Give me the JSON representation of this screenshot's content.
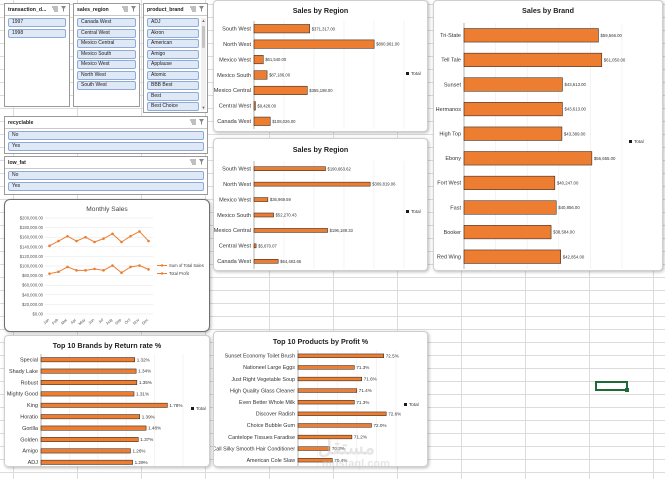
{
  "slicers": {
    "transaction_date": {
      "title": "transaction_d...",
      "items": [
        "1997",
        "1998"
      ]
    },
    "sales_region": {
      "title": "sales_region",
      "items": [
        "Canada West",
        "Central West",
        "Mexico Central",
        "Mexico South",
        "Mexico West",
        "North West",
        "South West"
      ]
    },
    "product_brand": {
      "title": "product_brand",
      "items": [
        "ADJ",
        "Akron",
        "American",
        "Amigo",
        "Applause",
        "Atomic",
        "BBB Best",
        "Best",
        "Best Choice"
      ]
    },
    "recyclable": {
      "title": "recyclable",
      "items": [
        "No",
        "Yes"
      ]
    },
    "low_fat": {
      "title": "low_fat",
      "items": [
        "No",
        "Yes"
      ]
    }
  },
  "colors": {
    "bar": "#ed7d31",
    "bar_edge": "#1a1a1a",
    "line": "#ed7d31",
    "selection": "#1d6b35"
  },
  "watermark": {
    "main": "مستقل",
    "sub": "mostaql.com"
  },
  "chart_data": [
    {
      "id": "sales_by_region_1",
      "type": "bar",
      "orientation": "horizontal",
      "title": "Sales by Region",
      "categories": [
        "South West",
        "North West",
        "Mexico West",
        "Mexico South",
        "Mexico Central",
        "Central West",
        "Canada West"
      ],
      "values": [
        371317,
        800961,
        61540,
        87186,
        355198,
        9428,
        108026
      ],
      "data_labels": [
        "$371,317.00",
        "$800,961.00",
        "$61,540.00",
        "$87,186.00",
        "$355,198.00",
        "$9,428.00",
        "$108,026.00"
      ],
      "legend": [
        "Total"
      ],
      "legend_position": "right",
      "xlim": [
        0,
        1000000
      ],
      "grid": true
    },
    {
      "id": "sales_by_region_2",
      "type": "bar",
      "orientation": "horizontal",
      "title": "Sales by Region",
      "categories": [
        "South West",
        "North West",
        "Mexico West",
        "Mexico South",
        "Mexico Central",
        "Central West",
        "Canada West"
      ],
      "values": [
        190663,
        309819,
        36969,
        52270,
        196189,
        5670,
        64483
      ],
      "data_labels": [
        "$190,663.62",
        "$309,819.06",
        "$36,969.59",
        "$52,270.43",
        "$196,189.33",
        "$5,670.07",
        "$64,483.66"
      ],
      "legend": [
        "Total"
      ],
      "legend_position": "right",
      "xlim": [
        0,
        400000
      ],
      "grid": true
    },
    {
      "id": "sales_by_brand",
      "type": "bar",
      "orientation": "horizontal",
      "title": "Sales by Brand",
      "categories": [
        "Tri-State",
        "Tell Tale",
        "Sunset",
        "Hermanos",
        "High Top",
        "Ebony",
        "Fort West",
        "Fast",
        "Booker",
        "Red Wing"
      ],
      "values": [
        59566,
        61050,
        43613,
        43613,
        43389,
        56655,
        40247,
        40856,
        38584,
        42854
      ],
      "data_labels": [
        "$59,566.00",
        "$61,050.00",
        "$43,613.00",
        "$43,613.00",
        "$43,389.00",
        "$56,655.00",
        "$40,247.00",
        "$40,856.00",
        "$38,584.00",
        "$42,854.00"
      ],
      "legend": [
        "Total"
      ],
      "legend_position": "right",
      "xlim": [
        0,
        70000
      ],
      "grid": true
    },
    {
      "id": "monthly_sales",
      "type": "line",
      "title": "Monthly Sales",
      "categories": [
        "Jan",
        "Feb",
        "Mar",
        "Apr",
        "May",
        "Jun",
        "Jul",
        "Aug",
        "Sep",
        "Oct",
        "Nov",
        "Dec"
      ],
      "series": [
        {
          "name": "Sum of Total Sales",
          "values": [
            142000,
            152000,
            162000,
            152000,
            160000,
            150000,
            157000,
            167000,
            150000,
            162000,
            172000,
            152000
          ]
        },
        {
          "name": "Total Profit",
          "values": [
            84000,
            88000,
            98000,
            91000,
            91000,
            94000,
            91000,
            101000,
            86000,
            98000,
            101000,
            93000
          ]
        }
      ],
      "yticks": [
        "$0.00",
        "$20,000.00",
        "$40,000.00",
        "$60,000.00",
        "$80,000.00",
        "$100,000.00",
        "$120,000.00",
        "$140,000.00",
        "$160,000.00",
        "$180,000.00",
        "$200,000.00"
      ],
      "ylim": [
        0,
        200000
      ],
      "legend_position": "right",
      "grid": true
    },
    {
      "id": "top10_return_rate",
      "type": "bar",
      "orientation": "horizontal",
      "title": "Top 10 Brands by Return rate %",
      "categories": [
        "Special",
        "Shady Lake",
        "Robust",
        "Mighty Good",
        "King",
        "Horatio",
        "Gorilla",
        "Golden",
        "Amigo",
        "ADJ"
      ],
      "values": [
        1.32,
        1.34,
        1.35,
        1.31,
        1.78,
        1.39,
        1.48,
        1.37,
        1.26,
        1.29
      ],
      "data_labels": [
        "1.32%",
        "1.34%",
        "1.35%",
        "1.31%",
        "1.78%",
        "1.39%",
        "1.48%",
        "1.37%",
        "1.26%",
        "1.29%"
      ],
      "legend": [
        "Total"
      ],
      "legend_position": "right",
      "xlim": [
        0,
        2
      ],
      "grid": true
    },
    {
      "id": "top10_profit",
      "type": "bar",
      "orientation": "horizontal",
      "title": "Top 10 Products by Profit %",
      "categories": [
        "Sunset Economy Toilet Brush",
        "Nationeel Large Eggs",
        "Just Right Vegetable Soup",
        "High Quality Glass Cleaner",
        "Even Better Whole Milk",
        "Discover Radish",
        "Choice Bubble Gum",
        "Cantelope Tissues Faradise",
        "Bird Call Silky Smooth Hair Conditioner",
        "American Cole Slaw"
      ],
      "values": [
        72.5,
        71.3,
        71.6,
        71.4,
        71.3,
        72.6,
        72.0,
        71.2,
        70.3,
        70.4
      ],
      "data_labels": [
        "72.5%",
        "71.3%",
        "71.6%",
        "71.4%",
        "71.3%",
        "72.6%",
        "72.0%",
        "71.2%",
        "70.3%",
        "70.4%"
      ],
      "legend": [
        "Total"
      ],
      "legend_position": "right",
      "xlim": [
        69,
        73
      ],
      "grid": true
    }
  ]
}
